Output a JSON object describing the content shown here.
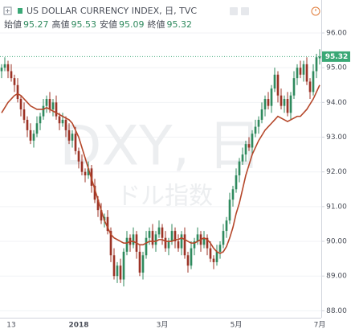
{
  "chart_data": {
    "type": "candlestick",
    "title": "US DOLLAR CURRENCY INDEX, 日, TVC",
    "ohlc_labels": [
      "始値",
      "高値",
      "安値",
      "終値"
    ],
    "watermark": "DXY, 日",
    "watermark_sub": "ドル指数",
    "categories": [
      null,
      null,
      null,
      "13",
      null,
      null,
      null,
      null,
      null,
      null,
      null,
      null,
      null,
      null,
      null,
      null,
      null,
      null,
      null,
      null,
      null,
      null,
      null,
      null,
      "2018",
      null,
      null,
      null,
      null,
      null,
      null,
      null,
      null,
      null,
      null,
      null,
      null,
      null,
      null,
      null,
      null,
      null,
      null,
      null,
      null,
      null,
      null,
      null,
      null,
      null,
      "3月",
      null,
      null,
      null,
      null,
      null,
      null,
      null,
      null,
      null,
      null,
      null,
      null,
      null,
      null,
      null,
      null,
      null,
      null,
      null,
      null,
      null,
      null,
      "5月",
      null,
      null,
      null,
      null,
      null,
      null,
      null,
      null,
      null,
      null,
      null,
      null,
      null,
      null,
      null,
      null,
      null,
      null,
      null,
      null,
      null,
      null,
      null,
      null,
      null,
      "7月"
    ],
    "open": [
      94.9,
      95.0,
      95.1,
      94.9,
      94.7,
      94.5,
      94.1,
      93.8,
      93.5,
      93.2,
      92.9,
      93.1,
      93.4,
      93.6,
      93.9,
      94.1,
      93.8,
      94.0,
      93.6,
      93.4,
      93.5,
      93.2,
      92.9,
      93.1,
      92.6,
      92.3,
      92.0,
      91.9,
      92.1,
      91.6,
      91.2,
      90.9,
      90.6,
      90.7,
      90.3,
      89.6,
      89.0,
      89.3,
      88.9,
      89.7,
      90.1,
      89.9,
      90.2,
      89.7,
      89.1,
      89.6,
      90.1,
      90.3,
      89.9,
      90.2,
      90.4,
      90.1,
      89.8,
      90.0,
      90.3,
      90.0,
      89.8,
      90.2,
      89.6,
      89.3,
      89.8,
      90.0,
      90.2,
      89.9,
      90.1,
      89.8,
      89.5,
      89.4,
      89.7,
      89.9,
      90.3,
      90.6,
      91.2,
      91.5,
      91.9,
      92.3,
      92.5,
      92.8,
      92.7,
      93.1,
      93.3,
      93.5,
      93.8,
      94.1,
      93.9,
      94.4,
      94.8,
      94.2,
      93.9,
      94.1,
      93.7,
      94.2,
      94.7,
      95.0,
      94.8,
      95.1,
      94.6,
      94.3,
      94.9,
      95.27
    ],
    "high": [
      95.1,
      95.3,
      95.2,
      95.1,
      94.8,
      94.7,
      94.2,
      94.0,
      93.6,
      93.4,
      93.2,
      93.6,
      93.7,
      94.1,
      94.2,
      94.3,
      94.1,
      94.2,
      93.7,
      93.7,
      93.6,
      93.4,
      93.2,
      93.3,
      92.7,
      92.5,
      92.1,
      92.3,
      92.2,
      91.8,
      91.3,
      91.1,
      90.8,
      90.9,
      90.4,
      89.8,
      89.4,
      89.5,
      89.8,
      90.3,
      90.2,
      90.4,
      90.3,
      89.9,
      89.7,
      90.3,
      90.4,
      90.5,
      90.3,
      90.6,
      90.5,
      90.3,
      90.1,
      90.5,
      90.4,
      90.2,
      90.3,
      90.4,
      89.7,
      90.0,
      90.1,
      90.4,
      90.3,
      90.3,
      90.2,
      90.0,
      89.6,
      89.9,
      90.0,
      90.5,
      90.7,
      91.4,
      91.6,
      92.1,
      92.4,
      92.7,
      92.9,
      93.0,
      93.2,
      93.5,
      93.6,
      94.0,
      94.2,
      94.3,
      94.5,
      95.0,
      94.9,
      94.4,
      94.2,
      94.3,
      94.3,
      94.9,
      95.1,
      95.2,
      95.2,
      95.3,
      94.7,
      95.1,
      95.4,
      95.53
    ],
    "low": [
      94.7,
      94.9,
      94.7,
      94.6,
      94.3,
      94.0,
      93.6,
      93.4,
      93.0,
      92.8,
      92.7,
      93.0,
      93.2,
      93.5,
      93.7,
      93.7,
      93.6,
      93.5,
      93.2,
      93.3,
      93.0,
      92.8,
      92.7,
      92.5,
      92.1,
      91.9,
      91.7,
      91.8,
      91.4,
      91.1,
      90.7,
      90.5,
      90.4,
      90.2,
      89.4,
      88.9,
      88.8,
      88.8,
      88.7,
      89.6,
      89.7,
      89.8,
      89.5,
      89.0,
      88.9,
      89.5,
      89.9,
      89.8,
      89.7,
      90.1,
      89.9,
      89.7,
      89.6,
      89.9,
      89.8,
      89.7,
      89.6,
      89.5,
      89.1,
      89.2,
      89.6,
      89.9,
      89.7,
      89.8,
      89.6,
      89.4,
      89.2,
      89.3,
      89.5,
      89.8,
      90.1,
      90.5,
      91.0,
      91.4,
      91.7,
      92.2,
      92.3,
      92.6,
      92.5,
      93.0,
      93.1,
      93.4,
      93.6,
      93.8,
      93.7,
      94.3,
      94.0,
      93.8,
      93.7,
      93.6,
      93.5,
      94.1,
      94.5,
      94.7,
      94.6,
      94.5,
      94.1,
      94.2,
      94.7,
      95.09
    ],
    "close": [
      95.0,
      95.1,
      94.9,
      94.7,
      94.5,
      94.1,
      93.8,
      93.5,
      93.2,
      92.9,
      93.1,
      93.4,
      93.6,
      93.9,
      94.1,
      93.8,
      94.0,
      93.6,
      93.4,
      93.5,
      93.2,
      92.9,
      93.1,
      92.6,
      92.3,
      92.0,
      91.9,
      92.1,
      91.6,
      91.2,
      90.9,
      90.6,
      90.7,
      90.3,
      89.6,
      89.0,
      89.3,
      88.9,
      89.7,
      90.1,
      89.9,
      90.2,
      89.7,
      89.1,
      89.6,
      90.1,
      90.3,
      89.9,
      90.2,
      90.4,
      90.1,
      89.8,
      90.0,
      90.3,
      90.0,
      89.8,
      90.2,
      89.6,
      89.3,
      89.8,
      90.0,
      90.2,
      89.9,
      90.1,
      89.8,
      89.5,
      89.4,
      89.7,
      89.9,
      90.3,
      90.6,
      91.2,
      91.5,
      91.9,
      92.3,
      92.5,
      92.8,
      92.7,
      93.1,
      93.3,
      93.5,
      93.8,
      94.1,
      93.9,
      94.4,
      94.8,
      94.2,
      93.9,
      94.1,
      93.7,
      94.2,
      94.7,
      95.0,
      94.8,
      95.1,
      94.6,
      94.3,
      94.9,
      95.3,
      95.32
    ],
    "up_color": "#2f8a5e",
    "down_color": "#9c3326",
    "moving_average": {
      "color": "#b5472a",
      "values": [
        93.7,
        93.85,
        94.0,
        94.1,
        94.2,
        94.25,
        94.2,
        94.1,
        94.0,
        93.9,
        93.85,
        93.8,
        93.8,
        93.8,
        93.85,
        93.8,
        93.75,
        93.7,
        93.65,
        93.6,
        93.55,
        93.5,
        93.4,
        93.2,
        93.0,
        92.7,
        92.4,
        92.1,
        91.8,
        91.5,
        91.2,
        90.9,
        90.6,
        90.4,
        90.2,
        90.1,
        90.05,
        90.0,
        89.95,
        89.95,
        90.0,
        90.0,
        89.95,
        89.9,
        89.9,
        89.95,
        90.0,
        90.0,
        90.0,
        90.05,
        90.05,
        90.0,
        90.0,
        90.0,
        90.05,
        90.05,
        90.1,
        90.05,
        90.0,
        89.95,
        89.95,
        90.0,
        90.05,
        90.1,
        90.05,
        89.95,
        89.8,
        89.7,
        89.65,
        89.7,
        89.85,
        90.1,
        90.4,
        90.8,
        91.1,
        91.5,
        91.9,
        92.2,
        92.5,
        92.7,
        92.9,
        93.05,
        93.2,
        93.3,
        93.4,
        93.5,
        93.6,
        93.55,
        93.5,
        93.45,
        93.5,
        93.55,
        93.6,
        93.6,
        93.7,
        93.8,
        93.95,
        94.1,
        94.3,
        94.5
      ]
    },
    "last_price_color": "#3aa876",
    "ylim": [
      87.8,
      96.95
    ],
    "yticks": [
      {
        "value": 88,
        "label": "88.00"
      },
      {
        "value": 89,
        "label": "89.00"
      },
      {
        "value": 90,
        "label": "90.00"
      },
      {
        "value": 91,
        "label": "91.00"
      },
      {
        "value": 92,
        "label": "92.00"
      },
      {
        "value": 93,
        "label": "93.00"
      },
      {
        "value": 94,
        "label": "94.00"
      },
      {
        "value": 95,
        "label": "95.00"
      },
      {
        "value": 96,
        "label": "96.00"
      }
    ],
    "grid": true
  }
}
